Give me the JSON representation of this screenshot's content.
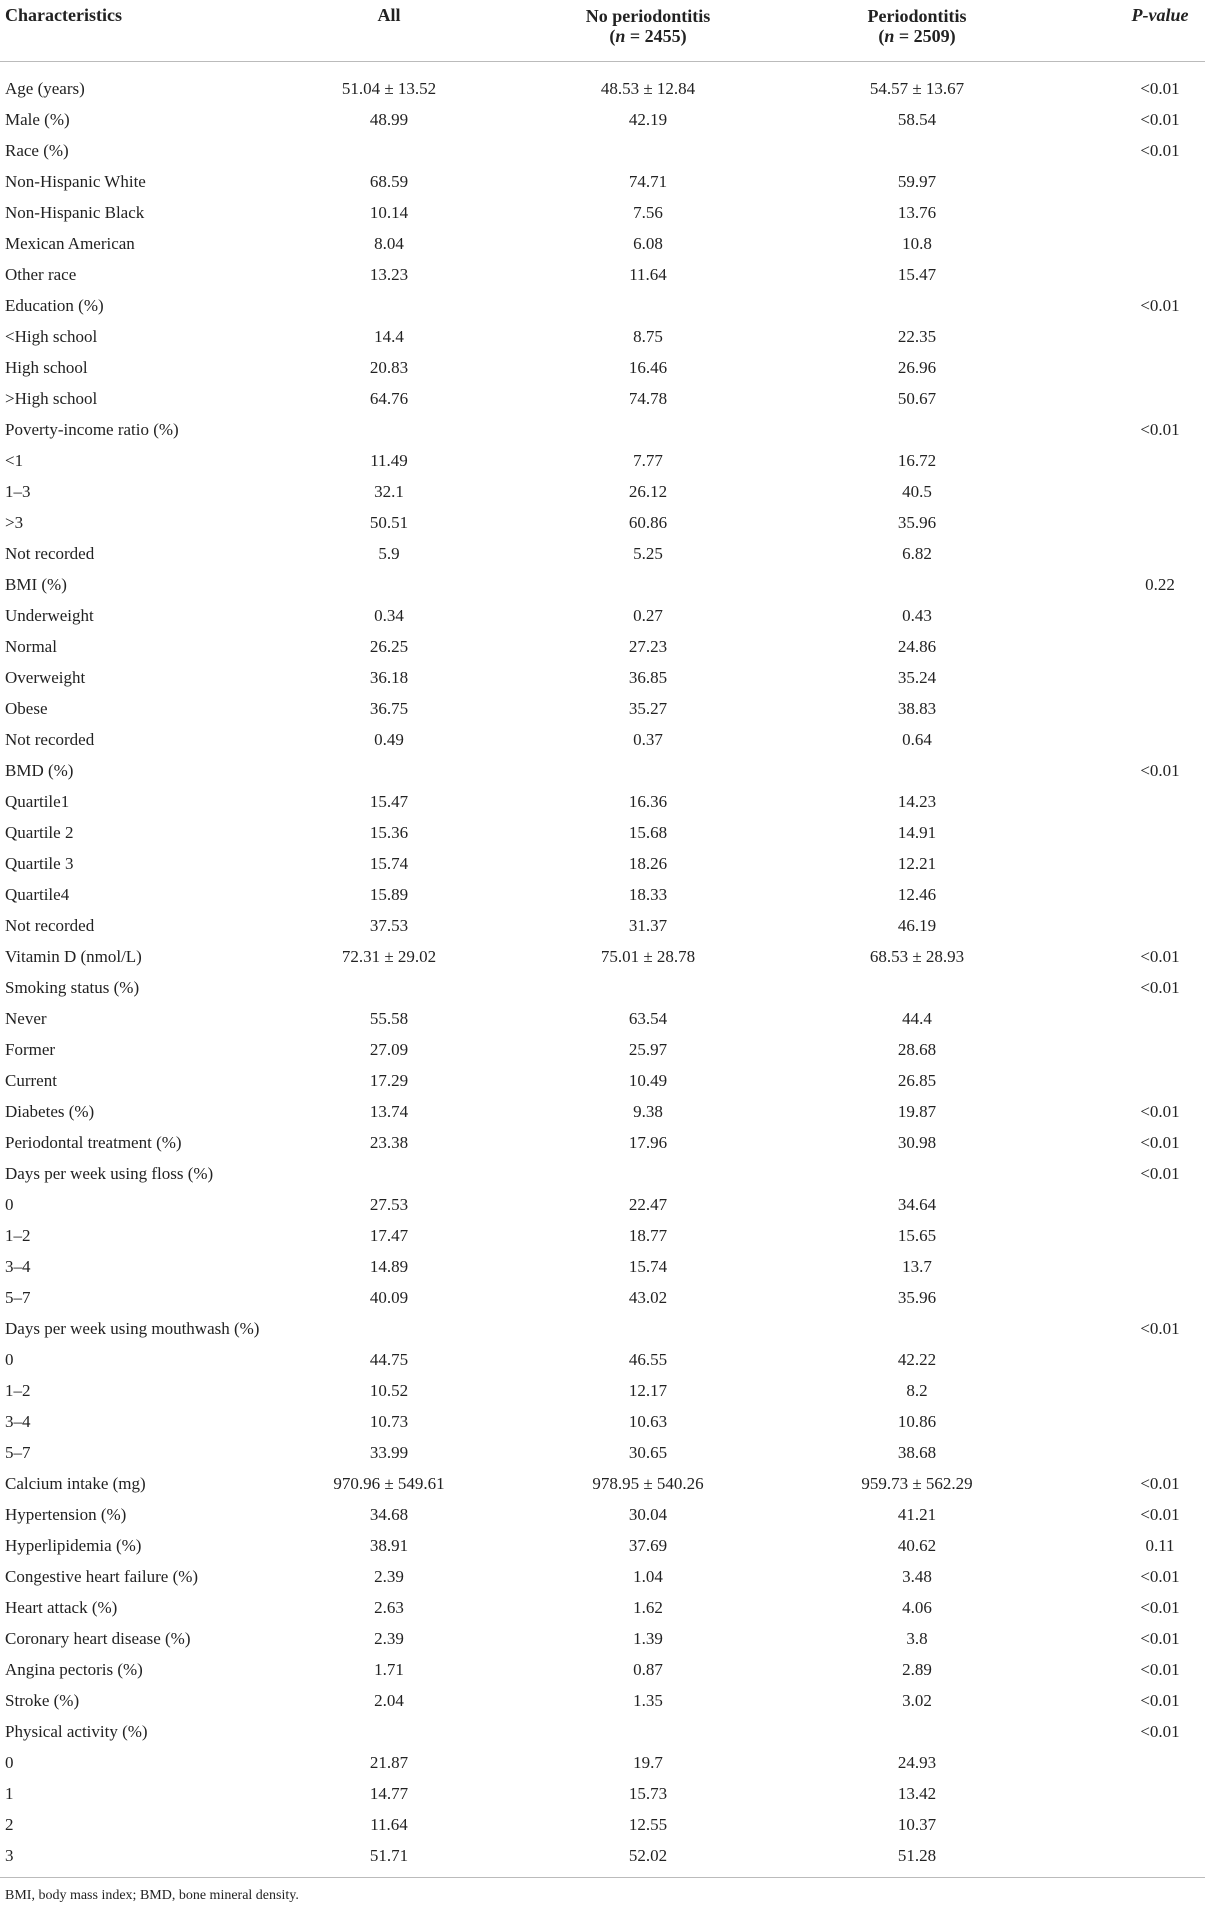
{
  "table": {
    "header": [
      {
        "line1": "Characteristics"
      },
      {
        "line1": "All"
      },
      {
        "line1": "No periodontitis",
        "line2": [
          "(",
          "n",
          " = 2455)"
        ]
      },
      {
        "line1": "Periodontitis",
        "line2": [
          "(",
          "n",
          " = 2509)"
        ]
      },
      {
        "line1": "P-value"
      }
    ],
    "rows": [
      [
        "Age (years)",
        "51.04 ± 13.52",
        "48.53 ± 12.84",
        "54.57 ± 13.67",
        "<0.01"
      ],
      [
        "Male (%)",
        "48.99",
        "42.19",
        "58.54",
        "<0.01"
      ],
      [
        "Race (%)",
        null,
        null,
        null,
        "<0.01"
      ],
      [
        "Non-Hispanic White",
        "68.59",
        "74.71",
        "59.97",
        null
      ],
      [
        "Non-Hispanic Black",
        "10.14",
        "7.56",
        "13.76",
        null
      ],
      [
        "Mexican American",
        "8.04",
        "6.08",
        "10.8",
        null
      ],
      [
        "Other race",
        "13.23",
        "11.64",
        "15.47",
        null
      ],
      [
        "Education (%)",
        null,
        null,
        null,
        "<0.01"
      ],
      [
        "<High school",
        "14.4",
        "8.75",
        "22.35",
        null
      ],
      [
        "High school",
        "20.83",
        "16.46",
        "26.96",
        null
      ],
      [
        ">High school",
        "64.76",
        "74.78",
        "50.67",
        null
      ],
      [
        "Poverty-income ratio (%)",
        null,
        null,
        null,
        "<0.01"
      ],
      [
        "<1",
        "11.49",
        "7.77",
        "16.72",
        null
      ],
      [
        "1–3",
        "32.1",
        "26.12",
        "40.5",
        null
      ],
      [
        ">3",
        "50.51",
        "60.86",
        "35.96",
        null
      ],
      [
        "Not recorded",
        "5.9",
        "5.25",
        "6.82",
        null
      ],
      [
        "BMI (%)",
        null,
        null,
        null,
        "0.22"
      ],
      [
        "Underweight",
        "0.34",
        "0.27",
        "0.43",
        null
      ],
      [
        "Normal",
        "26.25",
        "27.23",
        "24.86",
        null
      ],
      [
        "Overweight",
        "36.18",
        "36.85",
        "35.24",
        null
      ],
      [
        "Obese",
        "36.75",
        "35.27",
        "38.83",
        null
      ],
      [
        "Not recorded",
        "0.49",
        "0.37",
        "0.64",
        null
      ],
      [
        "BMD (%)",
        null,
        null,
        null,
        "<0.01"
      ],
      [
        "Quartile1",
        "15.47",
        "16.36",
        "14.23",
        null
      ],
      [
        "Quartile 2",
        "15.36",
        "15.68",
        "14.91",
        null
      ],
      [
        "Quartile 3",
        "15.74",
        "18.26",
        "12.21",
        null
      ],
      [
        "Quartile4",
        "15.89",
        "18.33",
        "12.46",
        null
      ],
      [
        "Not recorded",
        "37.53",
        "31.37",
        "46.19",
        null
      ],
      [
        "Vitamin D (nmol/L)",
        "72.31 ± 29.02",
        "75.01 ± 28.78",
        "68.53 ± 28.93",
        "<0.01"
      ],
      [
        "Smoking status (%)",
        null,
        null,
        null,
        "<0.01"
      ],
      [
        "Never",
        "55.58",
        "63.54",
        "44.4",
        null
      ],
      [
        "Former",
        "27.09",
        "25.97",
        "28.68",
        null
      ],
      [
        "Current",
        "17.29",
        "10.49",
        "26.85",
        null
      ],
      [
        "Diabetes (%)",
        "13.74",
        "9.38",
        "19.87",
        "<0.01"
      ],
      [
        "Periodontal treatment (%)",
        "23.38",
        "17.96",
        "30.98",
        "<0.01"
      ],
      [
        "Days per week using floss (%)",
        null,
        null,
        null,
        "<0.01"
      ],
      [
        "0",
        "27.53",
        "22.47",
        "34.64",
        null
      ],
      [
        "1–2",
        "17.47",
        "18.77",
        "15.65",
        null
      ],
      [
        "3–4",
        "14.89",
        "15.74",
        "13.7",
        null
      ],
      [
        "5–7",
        "40.09",
        "43.02",
        "35.96",
        null
      ],
      [
        "Days per week using mouthwash (%)",
        null,
        null,
        null,
        "<0.01"
      ],
      [
        "0",
        "44.75",
        "46.55",
        "42.22",
        null
      ],
      [
        "1–2",
        "10.52",
        "12.17",
        "8.2",
        null
      ],
      [
        "3–4",
        "10.73",
        "10.63",
        "10.86",
        null
      ],
      [
        "5–7",
        "33.99",
        "30.65",
        "38.68",
        null
      ],
      [
        "Calcium intake (mg)",
        "970.96 ± 549.61",
        "978.95 ± 540.26",
        "959.73 ± 562.29",
        "<0.01"
      ],
      [
        "Hypertension (%)",
        "34.68",
        "30.04",
        "41.21",
        "<0.01"
      ],
      [
        "Hyperlipidemia (%)",
        "38.91",
        "37.69",
        "40.62",
        "0.11"
      ],
      [
        "Congestive heart failure (%)",
        "2.39",
        "1.04",
        "3.48",
        "<0.01"
      ],
      [
        "Heart attack (%)",
        "2.63",
        "1.62",
        "4.06",
        "<0.01"
      ],
      [
        "Coronary heart disease (%)",
        "2.39",
        "1.39",
        "3.8",
        "<0.01"
      ],
      [
        "Angina pectoris (%)",
        "1.71",
        "0.87",
        "2.89",
        "<0.01"
      ],
      [
        "Stroke (%)",
        "2.04",
        "1.35",
        "3.02",
        "<0.01"
      ],
      [
        "Physical activity (%)",
        null,
        null,
        null,
        "<0.01"
      ],
      [
        "0",
        "21.87",
        "19.7",
        "24.93",
        null
      ],
      [
        "1",
        "14.77",
        "15.73",
        "13.42",
        null
      ],
      [
        "2",
        "11.64",
        "12.55",
        "10.37",
        null
      ],
      [
        "3",
        "51.71",
        "52.02",
        "51.28",
        null
      ]
    ],
    "footnote": "BMI, body mass index; BMD, bone mineral density."
  }
}
